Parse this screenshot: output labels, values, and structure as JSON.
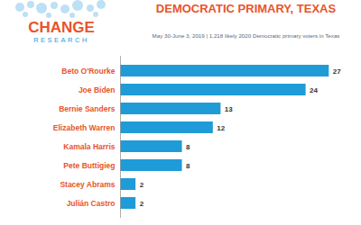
{
  "chart_data": {
    "type": "bar",
    "orientation": "horizontal",
    "title": "DEMOCRATIC PRIMARY, TEXAS",
    "subtitle": "May 30-June 3, 2019 | 1,218 likely 2020 Democratic primary voters in Texas",
    "annotations": [
      "CHANGE RESEARCH"
    ],
    "categories": [
      "Beto O'Rourke",
      "Joe Biden",
      "Bernie Sanders",
      "Elizabeth Warren",
      "Kamala Harris",
      "Pete Buttigieg",
      "Stacey Abrams",
      "Julián Castro"
    ],
    "values": [
      27,
      24,
      13,
      12,
      8,
      8,
      2,
      2
    ],
    "color": "#1f9bd7",
    "xlim": [
      0,
      30
    ],
    "data_labels": true,
    "tick_labels": "y",
    "grid": false
  }
}
